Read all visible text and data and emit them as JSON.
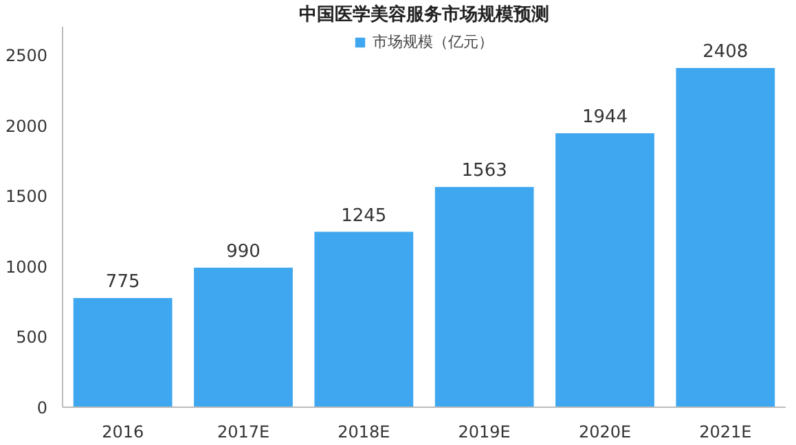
{
  "chart_data": {
    "type": "bar",
    "title": "中国医学美容服务市场规模预测",
    "categories": [
      "2016",
      "2017E",
      "2018E",
      "2019E",
      "2020E",
      "2021E"
    ],
    "series": [
      {
        "name": "市场规模（亿元）",
        "color": "#3fa7f0",
        "values": [
          775,
          990,
          1245,
          1563,
          1944,
          2408
        ]
      }
    ],
    "ylim": [
      0,
      2700
    ],
    "yticks": [
      0,
      500,
      1000,
      1500,
      2000,
      2500
    ],
    "grid": false,
    "legend": "top",
    "data_labels": true
  }
}
